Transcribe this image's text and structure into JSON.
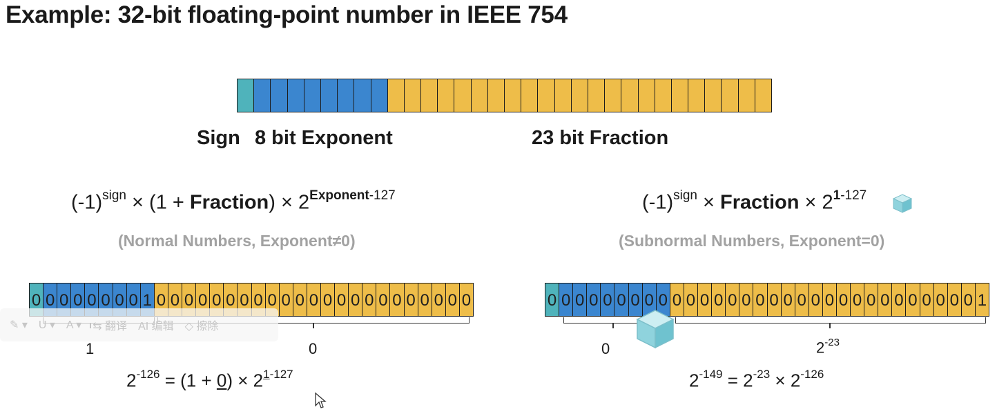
{
  "title": "Example: 32-bit floating-point number in IEEE 754",
  "layout_bits": {
    "sign": 1,
    "exponent": 8,
    "fraction": 23
  },
  "labels": {
    "sign": "Sign",
    "exponent": "8 bit Exponent",
    "fraction": "23 bit Fraction"
  },
  "normal": {
    "formula": {
      "base": "(-1)",
      "sign_sup": "sign",
      "times": "×",
      "open": "(1 +",
      "bold": "Fraction",
      "close": ")",
      "two": "2",
      "exp_bold": "Exponent",
      "exp_rest": "-127"
    },
    "note": "(Normal Numbers, Exponent≠0)",
    "bits": "00000000100000000000000000000000",
    "brace_labels": {
      "exponent": "1",
      "fraction": "0"
    },
    "equation": {
      "lhs_base": "2",
      "lhs_exp": "-126",
      "eq": "= (1 +",
      "zero": "0",
      "rhs": ") × 2",
      "rhs_exp_u": "1",
      "rhs_exp_rest": "-127"
    }
  },
  "subnormal": {
    "formula": {
      "base": "(-1)",
      "sign_sup": "sign",
      "times": "×",
      "bold": "Fraction",
      "two": "× 2",
      "exp_bold": "1",
      "exp_rest": "-127"
    },
    "note": "(Subnormal Numbers, Exponent=0)",
    "bits": "00000000000000000000000000000001",
    "brace_labels": {
      "exponent": "0",
      "fraction_base": "2",
      "fraction_exp": "-23"
    },
    "equation": {
      "lhs_base": "2",
      "lhs_exp": "-149",
      "mid": "= 2",
      "mid_exp": "-23",
      "times": "× 2",
      "rhs_exp": "-126"
    }
  },
  "toolbar": {
    "translate": "翻译",
    "edit": "编辑",
    "erase": "擦除"
  },
  "colors": {
    "sign": "#4fb3bb",
    "exponent": "#3b86cf",
    "fraction": "#eebd49"
  }
}
